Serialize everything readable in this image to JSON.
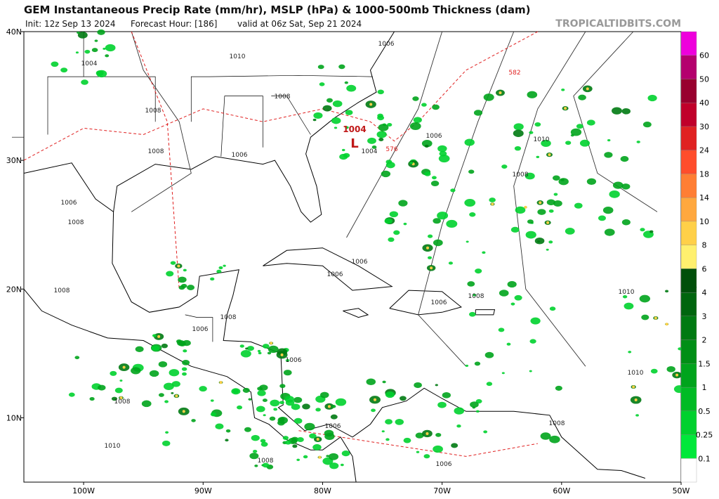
{
  "header": {
    "title": "GEM Instantaneous Precip Rate (mm/hr), MSLP (hPa) & 1000-500mb Thickness (dam)",
    "init": "Init: 12z Sep 13 2024",
    "forecast_hour": "Forecast Hour: [186]",
    "valid": "valid at 06z Sat, Sep 21 2024",
    "credit": "TROPICALTIDBITS.COM"
  },
  "map": {
    "lat_labels": [
      "40N",
      "30N",
      "20N",
      "10N"
    ],
    "lon_labels": [
      "100W",
      "90W",
      "80W",
      "70W",
      "60W",
      "50W"
    ],
    "low": {
      "pressure": "1004",
      "symbol": "L"
    },
    "thickness_labels": [
      "576",
      "582"
    ],
    "isobar_labels": [
      "1004",
      "1010",
      "1006",
      "1008",
      "1008",
      "1008",
      "1006",
      "1004",
      "1006",
      "1010",
      "1008",
      "1006",
      "1008",
      "1006",
      "1006",
      "1008",
      "1006",
      "1008",
      "1010",
      "1006",
      "1008",
      "1006",
      "1010",
      "1008",
      "1006",
      "1008",
      "1010",
      "1008",
      "1006"
    ]
  },
  "colorbar": {
    "labels": [
      "0.1",
      "0.25",
      "0.5",
      "1",
      "1.5",
      "2",
      "3",
      "4",
      "6",
      "8",
      "10",
      "14",
      "18",
      "24",
      "30",
      "40",
      "50",
      "60"
    ],
    "colors": [
      "#ffffff",
      "#00e83a",
      "#00d12e",
      "#00bb24",
      "#00a41c",
      "#008f16",
      "#007a12",
      "#00650e",
      "#004f0a",
      "#fff06e",
      "#ffd048",
      "#ffa83e",
      "#ff7e34",
      "#ff4d2c",
      "#e02222",
      "#c0002a",
      "#98002e",
      "#b4006e",
      "#ee00dc"
    ]
  }
}
